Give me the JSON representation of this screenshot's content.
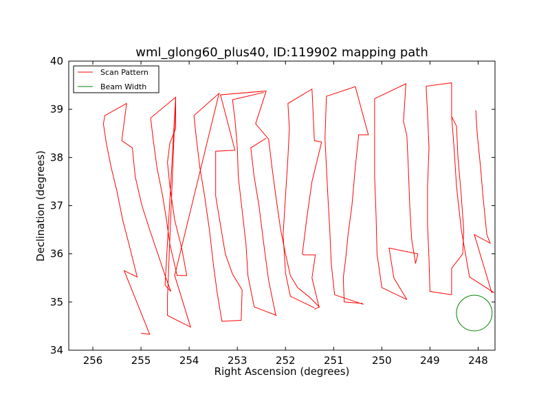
{
  "chart_data": {
    "type": "line",
    "title": "wml_glong60_plus40, ID:119902 mapping path",
    "xlabel": "Right Ascension (degrees)",
    "ylabel": "Declination (degrees)",
    "xlim": [
      256.5,
      247.65
    ],
    "ylim": [
      34,
      40
    ],
    "x_ticks": [
      256,
      255,
      254,
      253,
      252,
      251,
      250,
      249,
      248
    ],
    "y_ticks": [
      34,
      35,
      36,
      37,
      38,
      39,
      40
    ],
    "x_tick_labels": [
      "256",
      "255",
      "254",
      "253",
      "252",
      "251",
      "250",
      "249",
      "248"
    ],
    "y_tick_labels": [
      "34",
      "35",
      "36",
      "37",
      "38",
      "39",
      "40"
    ],
    "grid": false,
    "legend_position": "top-left",
    "series": [
      {
        "name": "Scan Pattern",
        "color": "#ff0000",
        "points": [
          [
            255.0,
            34.35
          ],
          [
            254.82,
            34.33
          ],
          [
            255.35,
            35.65
          ],
          [
            255.08,
            35.52
          ],
          [
            255.25,
            36.2
          ],
          [
            255.38,
            36.7
          ],
          [
            255.5,
            37.3
          ],
          [
            255.62,
            37.8
          ],
          [
            255.72,
            38.3
          ],
          [
            255.78,
            38.7
          ],
          [
            255.75,
            38.87
          ],
          [
            255.3,
            39.12
          ],
          [
            255.4,
            38.35
          ],
          [
            255.18,
            38.2
          ],
          [
            255.12,
            37.6
          ],
          [
            254.98,
            37.0
          ],
          [
            254.82,
            36.5
          ],
          [
            254.65,
            36.0
          ],
          [
            254.5,
            35.55
          ],
          [
            254.38,
            35.22
          ],
          [
            254.5,
            35.35
          ],
          [
            254.28,
            39.25
          ],
          [
            254.8,
            38.82
          ],
          [
            254.75,
            38.4
          ],
          [
            254.67,
            37.8
          ],
          [
            254.55,
            37.2
          ],
          [
            254.47,
            36.7
          ],
          [
            254.4,
            36.2
          ],
          [
            254.25,
            35.55
          ],
          [
            254.05,
            35.55
          ],
          [
            254.15,
            36.1
          ],
          [
            254.3,
            36.7
          ],
          [
            254.4,
            37.4
          ],
          [
            254.45,
            37.9
          ],
          [
            254.4,
            38.3
          ],
          [
            254.28,
            38.6
          ],
          [
            254.28,
            39.25
          ],
          [
            254.45,
            35.1
          ],
          [
            254.45,
            34.72
          ],
          [
            253.97,
            34.48
          ],
          [
            254.3,
            35.55
          ],
          [
            253.38,
            39.33
          ],
          [
            253.9,
            38.87
          ],
          [
            253.85,
            38.4
          ],
          [
            253.78,
            37.8
          ],
          [
            253.68,
            37.2
          ],
          [
            253.58,
            36.5
          ],
          [
            253.5,
            35.8
          ],
          [
            253.42,
            35.2
          ],
          [
            253.32,
            34.6
          ],
          [
            252.92,
            34.62
          ],
          [
            252.9,
            35.25
          ],
          [
            253.1,
            35.58
          ],
          [
            253.25,
            36.0
          ],
          [
            253.35,
            36.6
          ],
          [
            253.45,
            37.2
          ],
          [
            253.45,
            38.13
          ],
          [
            253.05,
            38.15
          ],
          [
            253.35,
            39.3
          ],
          [
            252.4,
            39.38
          ],
          [
            252.62,
            38.7
          ],
          [
            252.35,
            38.38
          ],
          [
            252.28,
            37.8
          ],
          [
            252.2,
            37.2
          ],
          [
            252.1,
            36.5
          ],
          [
            252.0,
            36.0
          ],
          [
            251.9,
            35.55
          ],
          [
            251.75,
            35.3
          ],
          [
            251.5,
            35.1
          ],
          [
            251.3,
            34.9
          ],
          [
            251.4,
            34.85
          ]
        ]
      },
      {
        "name": "",
        "color": "#ff0000",
        "points": [
          [
            252.18,
            34.72
          ],
          [
            252.65,
            34.9
          ],
          [
            252.78,
            35.55
          ],
          [
            252.82,
            36.2
          ],
          [
            252.9,
            36.9
          ],
          [
            252.98,
            37.6
          ],
          [
            253.0,
            38.2
          ],
          [
            253.05,
            38.8
          ],
          [
            253.1,
            39.2
          ],
          [
            252.45,
            39.35
          ]
        ]
      },
      {
        "name": "",
        "color": "#ff0000",
        "points": [
          [
            252.2,
            34.72
          ],
          [
            252.35,
            35.45
          ],
          [
            252.45,
            36.2
          ],
          [
            252.55,
            37.0
          ],
          [
            252.65,
            37.6
          ],
          [
            252.72,
            38.2
          ],
          [
            252.4,
            38.4
          ]
        ]
      },
      {
        "name": "",
        "color": "#ff0000",
        "points": [
          [
            251.4,
            34.88
          ],
          [
            251.9,
            35.12
          ],
          [
            252.0,
            35.6
          ],
          [
            252.05,
            36.4
          ],
          [
            252.0,
            37.2
          ],
          [
            251.95,
            38.0
          ],
          [
            251.92,
            38.6
          ],
          [
            251.95,
            39.12
          ],
          [
            251.45,
            39.42
          ],
          [
            251.4,
            38.35
          ],
          [
            251.25,
            38.32
          ],
          [
            251.45,
            37.5
          ],
          [
            251.55,
            36.8
          ],
          [
            251.65,
            36.0
          ],
          [
            251.62,
            35.98
          ],
          [
            251.38,
            35.98
          ],
          [
            251.45,
            35.5
          ],
          [
            251.3,
            34.88
          ]
        ]
      },
      {
        "name": "",
        "color": "#ff0000",
        "points": [
          [
            250.38,
            34.95
          ],
          [
            250.98,
            35.15
          ],
          [
            251.05,
            35.8
          ],
          [
            251.08,
            36.5
          ],
          [
            251.12,
            37.2
          ],
          [
            251.15,
            37.8
          ],
          [
            251.18,
            38.4
          ],
          [
            251.15,
            39.27
          ],
          [
            250.55,
            39.47
          ],
          [
            250.28,
            38.47
          ],
          [
            250.48,
            38.47
          ],
          [
            250.55,
            37.8
          ],
          [
            250.62,
            37.0
          ],
          [
            250.7,
            36.4
          ],
          [
            250.75,
            35.9
          ],
          [
            250.8,
            35.5
          ],
          [
            250.78,
            35.0
          ],
          [
            250.4,
            34.97
          ]
        ]
      },
      {
        "name": "",
        "color": "#ff0000",
        "points": [
          [
            249.48,
            35.05
          ],
          [
            250.0,
            35.3
          ],
          [
            250.1,
            36.0
          ],
          [
            250.12,
            36.8
          ],
          [
            250.15,
            37.6
          ],
          [
            250.15,
            38.4
          ],
          [
            250.15,
            39.22
          ],
          [
            249.5,
            39.53
          ],
          [
            249.55,
            38.75
          ],
          [
            249.48,
            38.45
          ],
          [
            249.45,
            37.8
          ],
          [
            249.42,
            37.0
          ],
          [
            249.38,
            36.3
          ],
          [
            249.3,
            35.8
          ],
          [
            249.25,
            36.0
          ],
          [
            249.85,
            36.12
          ],
          [
            249.75,
            35.5
          ],
          [
            249.48,
            35.05
          ]
        ]
      },
      {
        "name": "",
        "color": "#ff0000",
        "points": [
          [
            248.55,
            35.15
          ],
          [
            249.0,
            35.22
          ],
          [
            249.02,
            35.9
          ],
          [
            249.05,
            36.6
          ],
          [
            249.05,
            37.4
          ],
          [
            249.02,
            38.2
          ],
          [
            249.05,
            38.9
          ],
          [
            249.08,
            39.48
          ],
          [
            248.55,
            39.55
          ],
          [
            248.55,
            38.85
          ],
          [
            248.45,
            38.65
          ],
          [
            248.42,
            38.0
          ],
          [
            248.35,
            37.2
          ],
          [
            248.3,
            36.5
          ],
          [
            248.32,
            36.0
          ],
          [
            248.55,
            35.7
          ],
          [
            248.55,
            35.15
          ]
        ]
      },
      {
        "name": "",
        "color": "#ff0000",
        "points": [
          [
            248.05,
            38.98
          ],
          [
            248.02,
            38.5
          ],
          [
            247.95,
            37.8
          ],
          [
            247.9,
            37.2
          ],
          [
            247.85,
            36.7
          ],
          [
            247.82,
            36.4
          ],
          [
            247.75,
            36.22
          ],
          [
            248.08,
            36.4
          ],
          [
            247.72,
            35.2
          ],
          [
            247.68,
            35.2
          ],
          [
            248.18,
            35.52
          ],
          [
            248.35,
            36.5
          ],
          [
            248.45,
            37.4
          ],
          [
            248.5,
            38.2
          ],
          [
            248.55,
            38.85
          ]
        ]
      }
    ],
    "beam": {
      "name": "Beam Width",
      "color": "#008000",
      "center": [
        248.08,
        34.77
      ],
      "radius_deg": 0.37
    }
  }
}
